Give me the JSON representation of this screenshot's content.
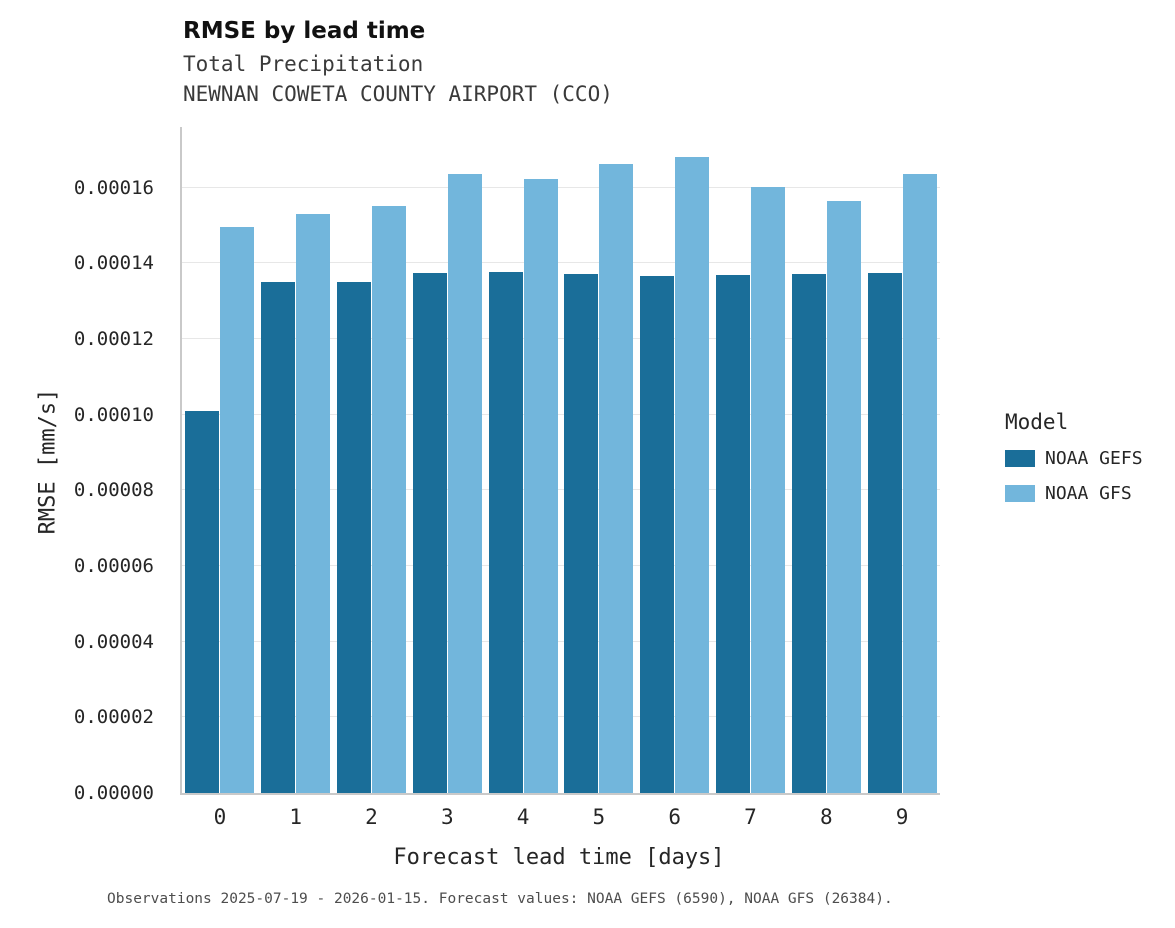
{
  "header": {
    "title": "RMSE by lead time",
    "subtitle1": "Total Precipitation",
    "subtitle2": "NEWNAN COWETA COUNTY AIRPORT (CCO)"
  },
  "axes": {
    "xlabel": "Forecast lead time [days]",
    "ylabel": "RMSE [mm/s]"
  },
  "legend": {
    "title": "Model",
    "entries": [
      {
        "label": "NOAA GEFS",
        "color": "#1a6e99"
      },
      {
        "label": "NOAA GFS",
        "color": "#72b6dc"
      }
    ]
  },
  "caption": "Observations 2025-07-19 - 2026-01-15. Forecast values: NOAA GEFS (6590), NOAA GFS (26384).",
  "chart_data": {
    "type": "bar",
    "title": "RMSE by lead time",
    "subtitle": "Total Precipitation — NEWNAN COWETA COUNTY AIRPORT (CCO)",
    "xlabel": "Forecast lead time [days]",
    "ylabel": "RMSE [mm/s]",
    "categories": [
      "0",
      "1",
      "2",
      "3",
      "4",
      "5",
      "6",
      "7",
      "8",
      "9"
    ],
    "series": [
      {
        "name": "NOAA GEFS",
        "color": "#1a6e99",
        "values": [
          0.000101,
          0.000135,
          0.000135,
          0.0001375,
          0.0001378,
          0.0001372,
          0.0001365,
          0.000137,
          0.0001372,
          0.0001375
        ]
      },
      {
        "name": "NOAA GFS",
        "color": "#72b6dc",
        "values": [
          0.0001495,
          0.000153,
          0.0001552,
          0.0001635,
          0.0001622,
          0.0001662,
          0.000168,
          0.0001602,
          0.0001565,
          0.0001635
        ]
      }
    ],
    "ylim": [
      0,
      0.000176
    ],
    "yticks": [
      0,
      2e-05,
      4e-05,
      6e-05,
      8e-05,
      0.0001,
      0.00012,
      0.00014,
      0.00016
    ],
    "ytick_labels": [
      "0.00000",
      "0.00002",
      "0.00004",
      "0.00006",
      "0.00008",
      "0.00010",
      "0.00012",
      "0.00014",
      "0.00016"
    ],
    "grid": "horizontal",
    "legend_position": "right"
  }
}
